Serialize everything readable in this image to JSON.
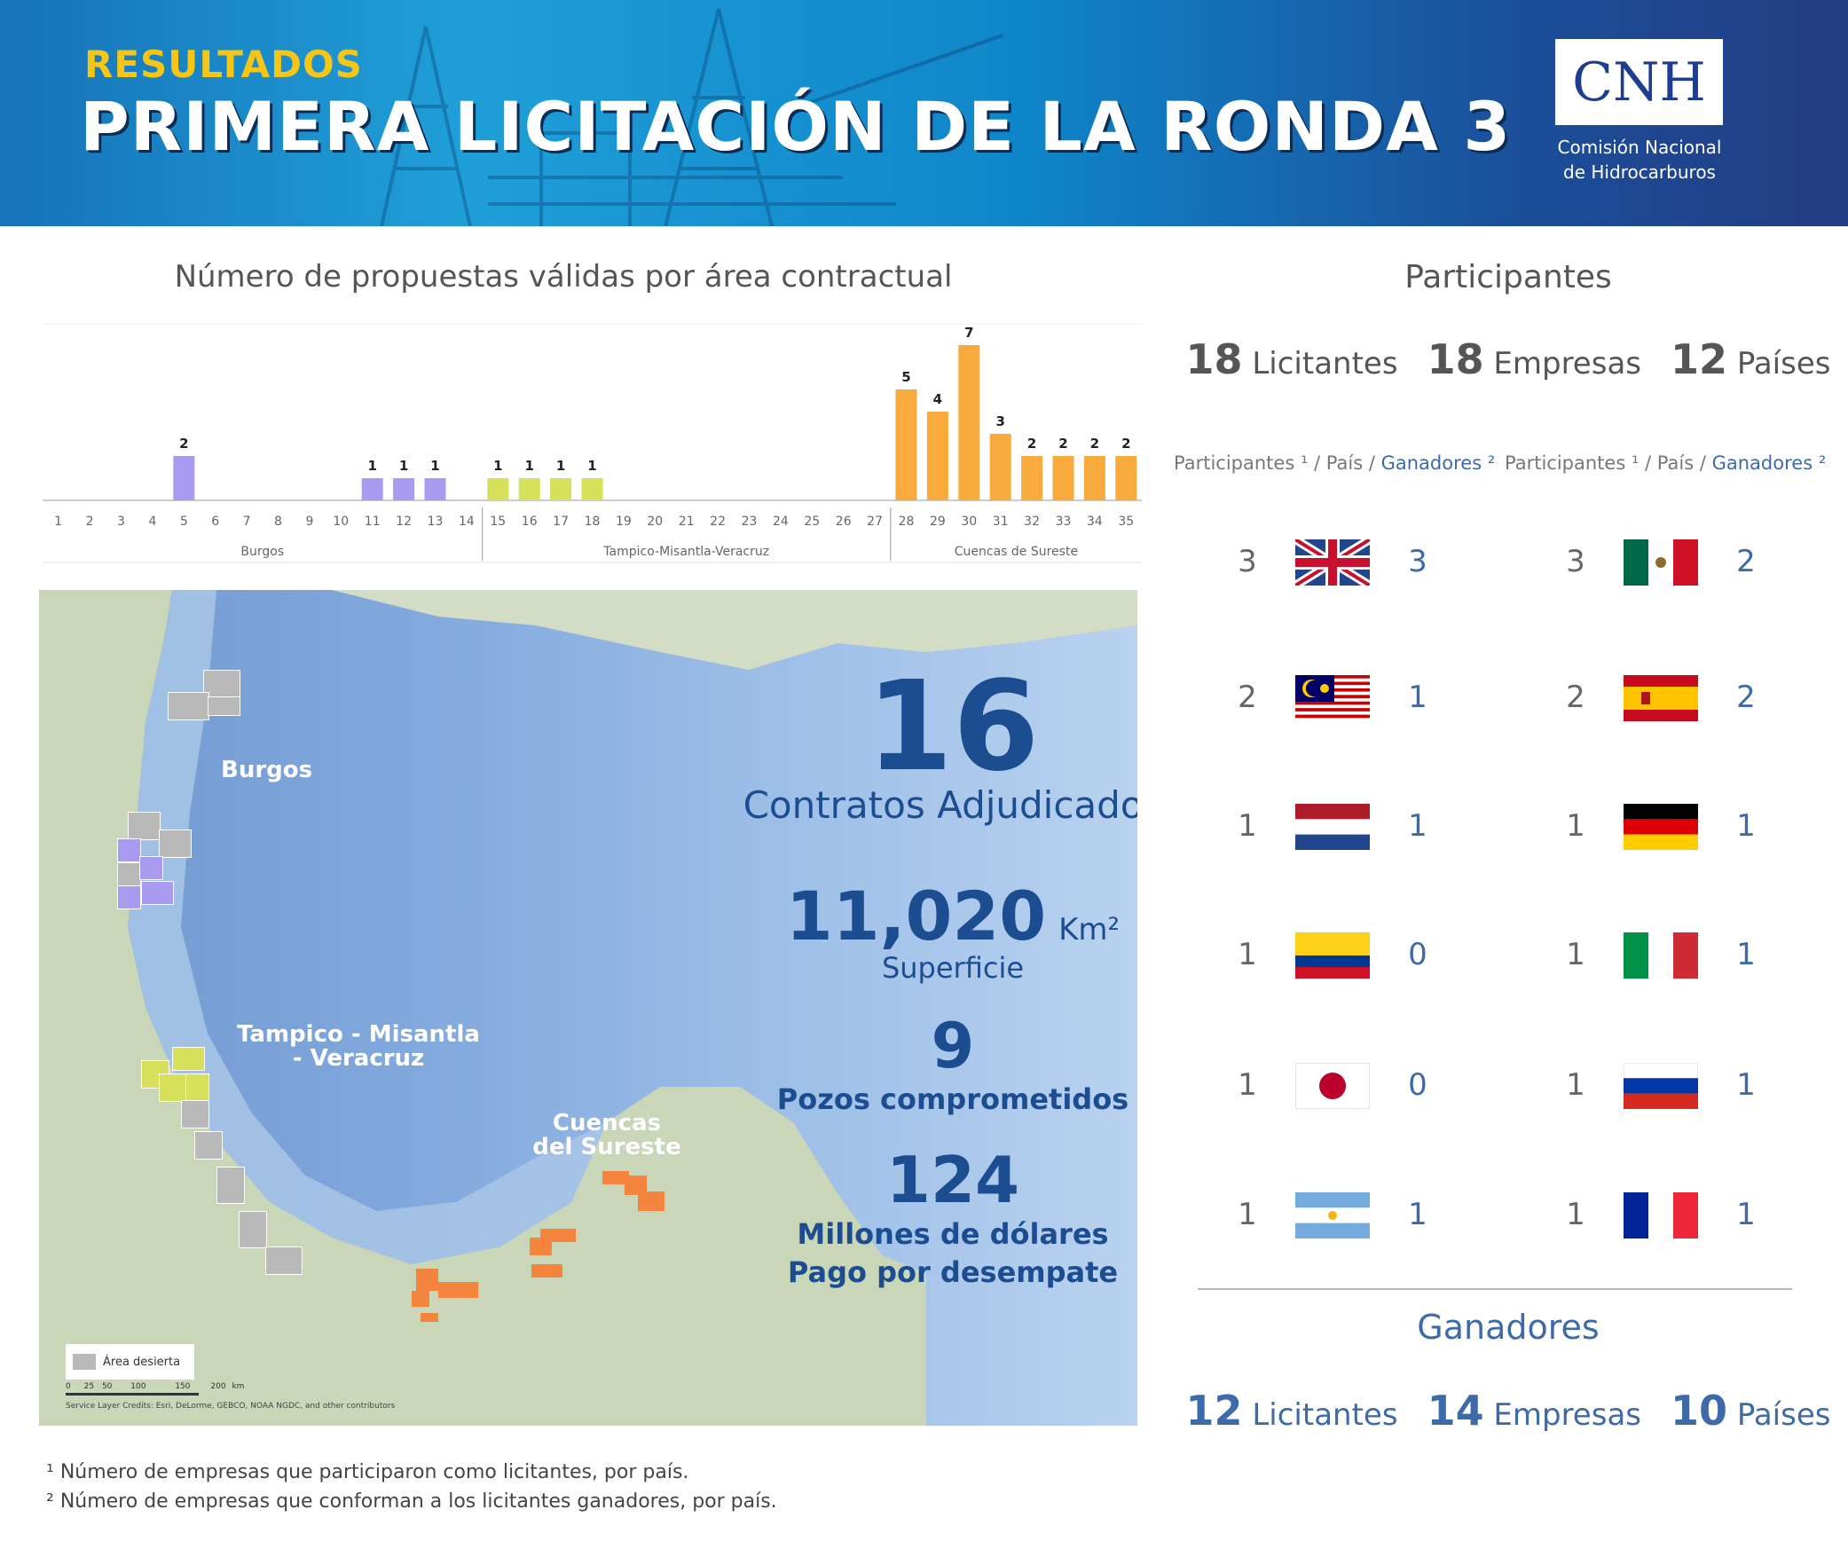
{
  "header": {
    "kicker": "RESULTADOS",
    "title": "PRIMERA LICITACIÓN DE LA RONDA 3",
    "logo_text": "CNH",
    "logo_sub_1": "Comisión Nacional",
    "logo_sub_2": "de Hidrocarburos"
  },
  "chart_data": {
    "type": "bar",
    "title": "Número de propuestas válidas por área contractual",
    "categories": [
      "1",
      "2",
      "3",
      "4",
      "5",
      "6",
      "7",
      "8",
      "9",
      "10",
      "11",
      "12",
      "13",
      "14",
      "15",
      "16",
      "17",
      "18",
      "19",
      "20",
      "21",
      "22",
      "23",
      "24",
      "25",
      "26",
      "27",
      "28",
      "29",
      "30",
      "31",
      "32",
      "33",
      "34",
      "35"
    ],
    "values": [
      0,
      0,
      0,
      0,
      2,
      0,
      0,
      0,
      0,
      0,
      1,
      1,
      1,
      0,
      1,
      1,
      1,
      1,
      0,
      0,
      0,
      0,
      0,
      0,
      0,
      0,
      0,
      5,
      4,
      7,
      3,
      2,
      2,
      2,
      2
    ],
    "groups": [
      {
        "name": "Burgos",
        "from": 1,
        "to": 14,
        "color": "#a99cf0"
      },
      {
        "name": "Tampico-Misantla-Veracruz",
        "from": 15,
        "to": 27,
        "color": "#d6e05a"
      },
      {
        "name": "Cuencas de  Sureste",
        "from": 28,
        "to": 35,
        "color": "#f9aa3c"
      }
    ],
    "ylim": [
      0,
      7
    ]
  },
  "map": {
    "labels": {
      "burgos": "Burgos",
      "tampico_1": "Tampico - Misantla",
      "tampico_2": "- Veracruz",
      "cuencas_1": "Cuencas",
      "cuencas_2": "del Sureste"
    },
    "stats": {
      "contratos_num": "16",
      "contratos_label": "Contratos Adjudicados",
      "superficie_num": "11,020",
      "superficie_unit": "Km²",
      "superficie_label": "Superficie",
      "pozos_num": "9",
      "pozos_label": "Pozos comprometidos",
      "pago_num": "124",
      "pago_label_1": "Millones de dólares",
      "pago_label_2": "Pago por desempate"
    },
    "legend": "Área desierta",
    "scale_ticks": [
      "0",
      "25",
      "50",
      "100",
      "150",
      "200"
    ],
    "scale_unit": "km",
    "credits": "Service Layer Credits: Esri, DeLorme, GEBCO, NOAA NGDC, and other contributors"
  },
  "participants": {
    "title": "Participantes",
    "licitantes_num": "18",
    "licitantes_label": "Licitantes",
    "empresas_num": "18",
    "empresas_label": "Empresas",
    "paises_num": "12",
    "paises_label": "Países",
    "col_head_part": "Participantes ¹ / País /",
    "col_head_win": "Ganadores ²",
    "left": [
      {
        "country": "uk",
        "participants": "3",
        "winners": "3"
      },
      {
        "country": "malaysia",
        "participants": "2",
        "winners": "1"
      },
      {
        "country": "netherlands",
        "participants": "1",
        "winners": "1"
      },
      {
        "country": "colombia",
        "participants": "1",
        "winners": "0"
      },
      {
        "country": "japan",
        "participants": "1",
        "winners": "0"
      },
      {
        "country": "argentina",
        "participants": "1",
        "winners": "1"
      }
    ],
    "right": [
      {
        "country": "mexico",
        "participants": "3",
        "winners": "2"
      },
      {
        "country": "spain",
        "participants": "2",
        "winners": "2"
      },
      {
        "country": "germany",
        "participants": "1",
        "winners": "1"
      },
      {
        "country": "italy",
        "participants": "1",
        "winners": "1"
      },
      {
        "country": "russia",
        "participants": "1",
        "winners": "1"
      },
      {
        "country": "france",
        "participants": "1",
        "winners": "1"
      }
    ]
  },
  "winners": {
    "title": "Ganadores",
    "licitantes_num": "12",
    "licitantes_label": "Licitantes",
    "empresas_num": "14",
    "empresas_label": "Empresas",
    "paises_num": "10",
    "paises_label": "Países"
  },
  "footnotes": {
    "note1": "¹ Número de empresas que participaron como licitantes, por país.",
    "note2": "² Número de empresas que conforman a los licitantes ganadores, por país."
  }
}
